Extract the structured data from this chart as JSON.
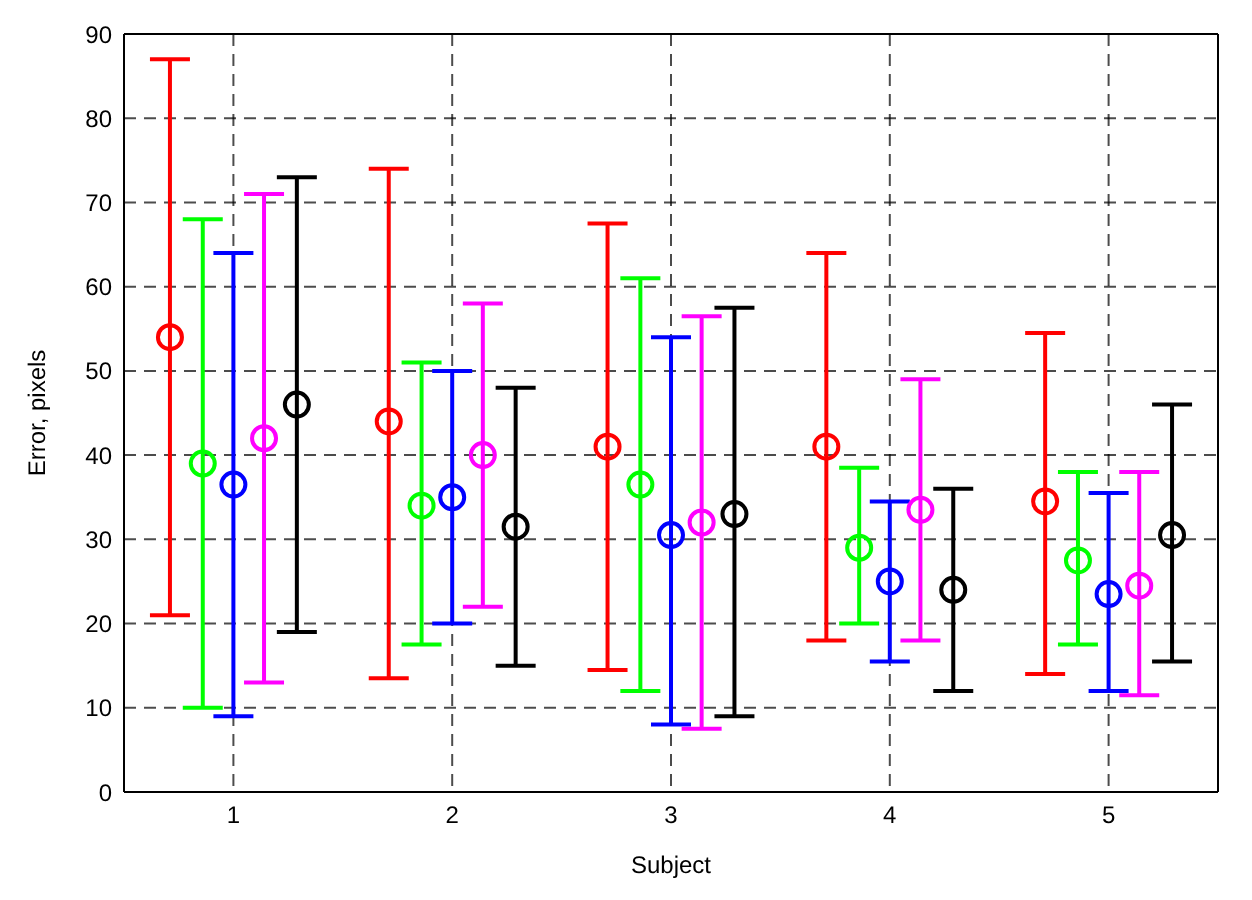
{
  "chart_data": {
    "type": "scatter",
    "xlabel": "Subject",
    "ylabel": "Error, pixels",
    "xlim": [
      0.5,
      5.5
    ],
    "xticks": [
      1,
      2,
      3,
      4,
      5
    ],
    "ylim": [
      0,
      90
    ],
    "yticks": [
      0,
      10,
      20,
      30,
      40,
      50,
      60,
      70,
      80,
      90
    ],
    "grid": true,
    "marker": "circle",
    "legend": false,
    "series": [
      {
        "color": "#ff0000",
        "x": [
          0.71,
          1.71,
          2.71,
          3.71,
          4.71
        ],
        "values": [
          54,
          44,
          41,
          41,
          34.5
        ],
        "errors": [
          [
            21,
            87
          ],
          [
            13.5,
            74
          ],
          [
            14.5,
            67.5
          ],
          [
            18,
            64
          ],
          [
            14,
            54.5
          ]
        ]
      },
      {
        "color": "#00ff00",
        "x": [
          0.86,
          1.86,
          2.86,
          3.86,
          4.86
        ],
        "values": [
          39,
          34,
          36.5,
          29,
          27.5
        ],
        "errors": [
          [
            10,
            68
          ],
          [
            17.5,
            51
          ],
          [
            12,
            61
          ],
          [
            20,
            38.5
          ],
          [
            17.5,
            38
          ]
        ]
      },
      {
        "color": "#0000ff",
        "x": [
          1,
          2,
          3,
          4,
          5
        ],
        "values": [
          36.5,
          35,
          30.5,
          25,
          23.5
        ],
        "errors": [
          [
            9,
            64
          ],
          [
            20,
            50
          ],
          [
            8,
            54
          ],
          [
            15.5,
            34.5
          ],
          [
            12,
            35.5
          ]
        ]
      },
      {
        "color": "#ff00ff",
        "x": [
          1.14,
          2.14,
          3.14,
          4.14,
          5.14
        ],
        "values": [
          42,
          40,
          32,
          33.5,
          24.5
        ],
        "errors": [
          [
            13,
            71
          ],
          [
            22,
            58
          ],
          [
            7.5,
            56.5
          ],
          [
            18,
            49
          ],
          [
            11.5,
            38
          ]
        ]
      },
      {
        "color": "#000000",
        "x": [
          1.29,
          2.29,
          3.29,
          4.29,
          5.29
        ],
        "values": [
          46,
          31.5,
          33,
          24,
          30.5
        ],
        "errors": [
          [
            19,
            73
          ],
          [
            15,
            48
          ],
          [
            9,
            57.5
          ],
          [
            12,
            36
          ],
          [
            15.5,
            46
          ]
        ]
      }
    ]
  }
}
